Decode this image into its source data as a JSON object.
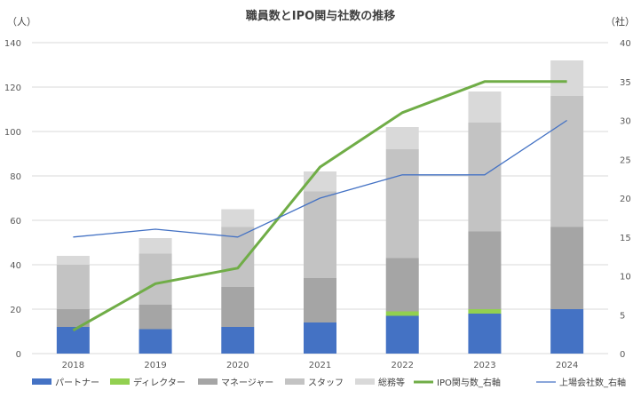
{
  "chart_data": {
    "type": "bar",
    "stacked": true,
    "title": "職員数とIPO関与社数の推移",
    "left_axis_unit": "（人）",
    "right_axis_unit": "（社）",
    "categories": [
      "2018",
      "2019",
      "2020",
      "2021",
      "2022",
      "2023",
      "2024"
    ],
    "ylim_left": [
      0,
      140
    ],
    "yticks_left": [
      0,
      20,
      40,
      60,
      80,
      100,
      120,
      140
    ],
    "ylim_right": [
      0,
      40
    ],
    "yticks_right": [
      0,
      5,
      10,
      15,
      20,
      25,
      30,
      35,
      40
    ],
    "grid": true,
    "legend_position": "bottom",
    "series": [
      {
        "name": "パートナー",
        "type": "bar",
        "axis": "left",
        "color": "#4472C4",
        "values": [
          12,
          11,
          12,
          14,
          17,
          18,
          20
        ]
      },
      {
        "name": "ディレクター",
        "type": "bar",
        "axis": "left",
        "color": "#92D050",
        "values": [
          0,
          0,
          0,
          0,
          2,
          2,
          0
        ]
      },
      {
        "name": "マネージャー",
        "type": "bar",
        "axis": "left",
        "color": "#A5A5A5",
        "values": [
          8,
          11,
          18,
          20,
          24,
          35,
          37
        ]
      },
      {
        "name": "スタッフ",
        "type": "bar",
        "axis": "left",
        "color": "#C3C3C3",
        "values": [
          20,
          23,
          27,
          39,
          49,
          49,
          59
        ]
      },
      {
        "name": "総務等",
        "type": "bar",
        "axis": "left",
        "color": "#D9D9D9",
        "values": [
          4,
          7,
          8,
          9,
          10,
          14,
          16
        ]
      },
      {
        "name": "IPO関与数_右軸",
        "type": "line",
        "axis": "right",
        "color": "#70AD47",
        "values": [
          3,
          9,
          11,
          24,
          31,
          35,
          35
        ]
      },
      {
        "name": "上場会社数_右軸",
        "type": "line",
        "axis": "right",
        "color": "#4472C4",
        "values": [
          15,
          16,
          15,
          20,
          23,
          23,
          30
        ]
      }
    ]
  }
}
